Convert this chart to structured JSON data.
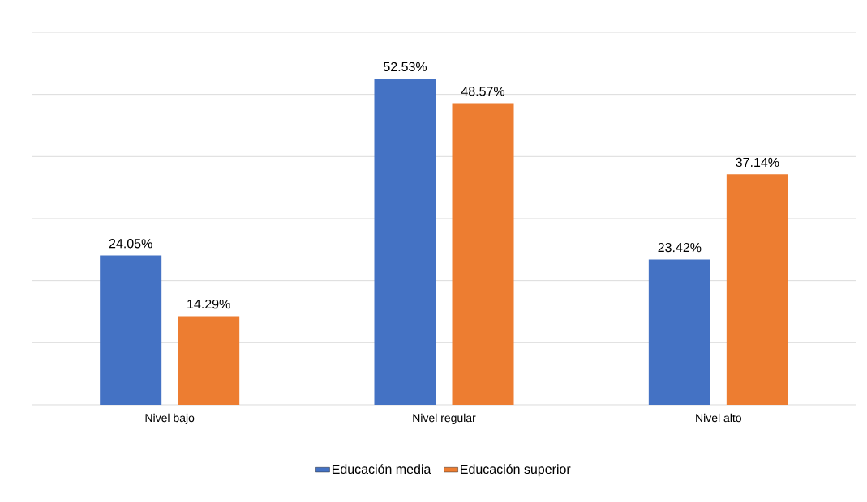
{
  "chart_data": {
    "type": "bar",
    "categories": [
      "Nivel bajo",
      "Nivel regular",
      "Nivel alto"
    ],
    "series": [
      {
        "name": "Educación media",
        "color": "#4472c4",
        "values": [
          24.05,
          52.53,
          23.42
        ],
        "value_labels": [
          "24.05%",
          "52.53%",
          "23.42%"
        ]
      },
      {
        "name": "Educación superior",
        "color": "#ed7d31",
        "values": [
          14.29,
          48.57,
          37.14
        ],
        "value_labels": [
          "14.29%",
          "48.57%",
          "37.14%"
        ]
      }
    ],
    "ylim": [
      0,
      60
    ],
    "yticks": [
      {
        "value": 0,
        "label": null
      },
      {
        "value": 10,
        "label": null
      },
      {
        "value": 20,
        "label": null
      },
      {
        "value": 30,
        "label": null
      },
      {
        "value": 40,
        "label": null
      },
      {
        "value": 50,
        "label": null
      },
      {
        "value": 60,
        "label": null
      }
    ],
    "grid": "y",
    "legend": "bottom",
    "tick_labels": "x"
  }
}
